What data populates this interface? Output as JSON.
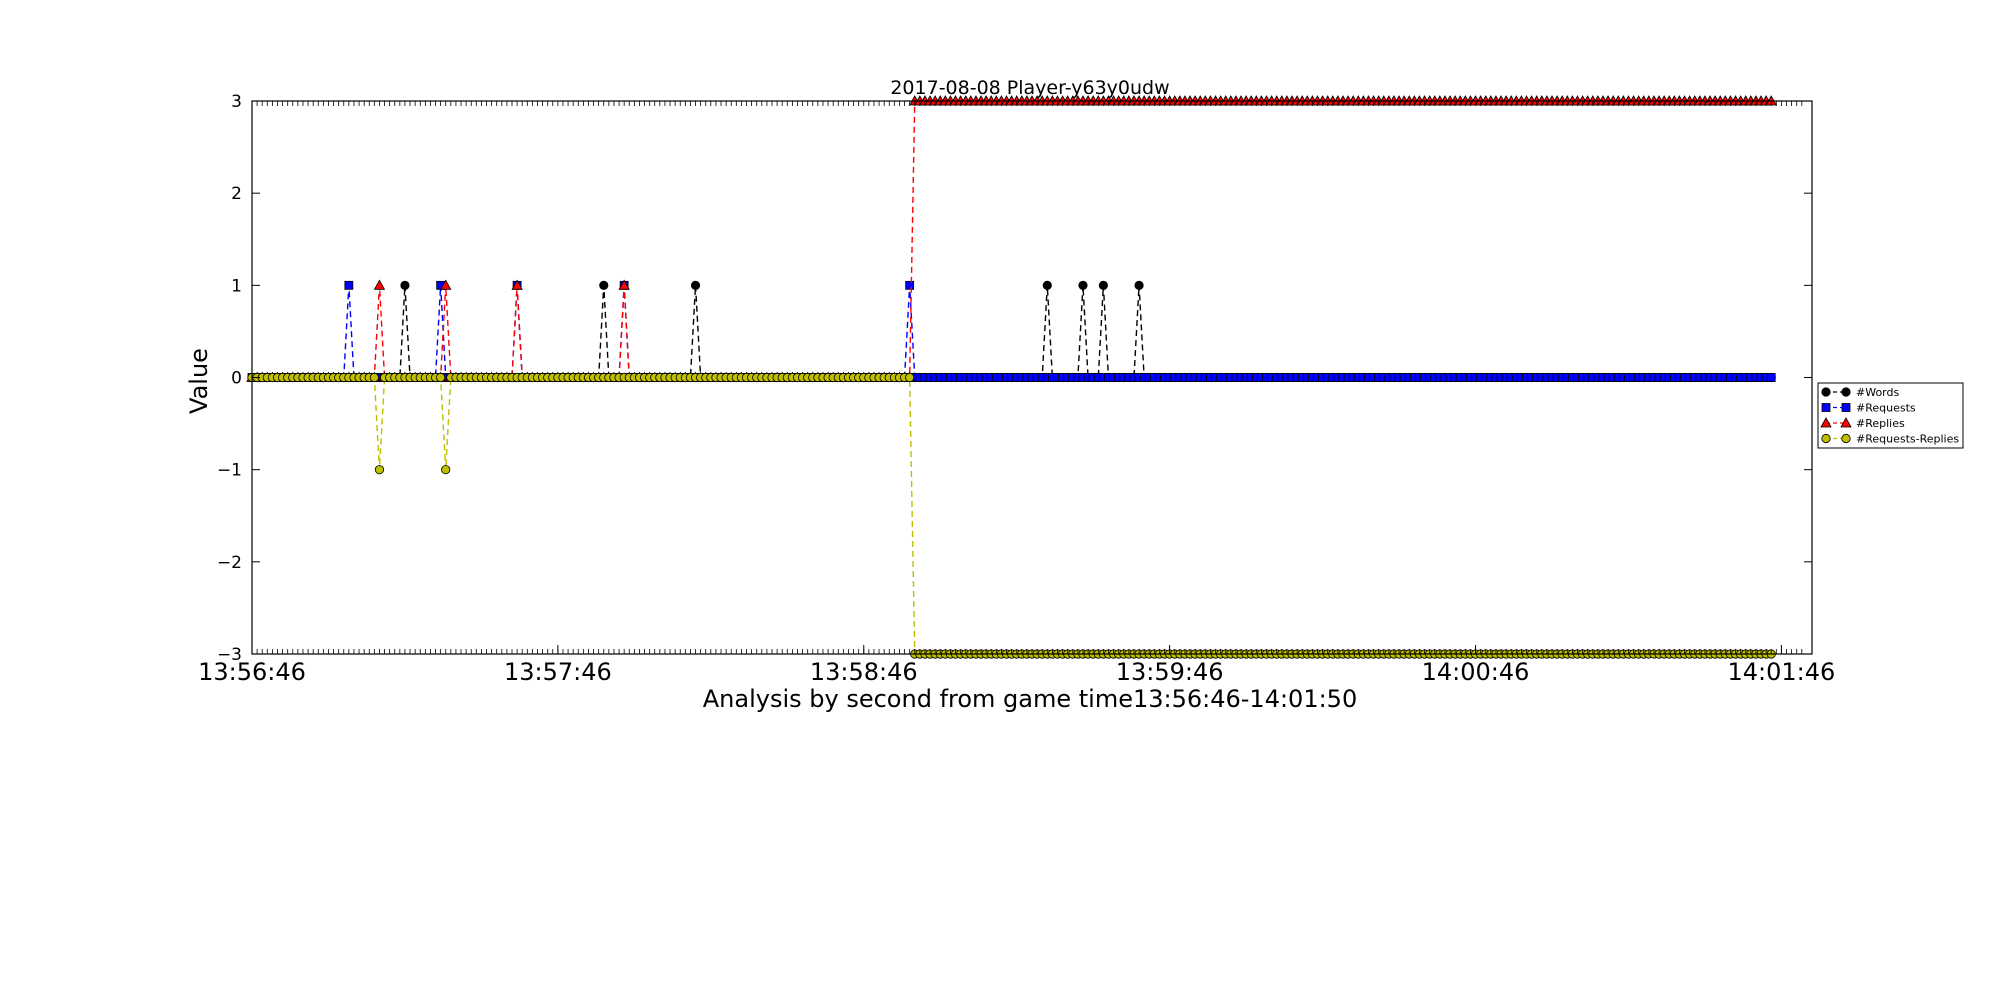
{
  "chart_data": {
    "type": "line",
    "title": "2017-08-08 Player-y63y0udw",
    "xlabel": "Analysis by second from game time13:56:46-14:01:50",
    "ylabel": "Value",
    "x_start": "13:56:46",
    "x_end": "14:01:50",
    "x_data_end": "14:01:52",
    "x_series_end": "14:01:44",
    "xlim": [
      "13:56:46",
      "14:01:50"
    ],
    "ylim": [
      -3,
      3
    ],
    "x_tick_labels": [
      "13:56:46",
      "13:57:46",
      "13:58:46",
      "13:59:46",
      "14:00:46",
      "14:01:46"
    ],
    "y_ticks": [
      -3,
      -2,
      -1,
      0,
      1,
      2,
      3
    ],
    "legend_position": "right, outside plot",
    "grid": false,
    "series": [
      {
        "name": "#Words",
        "color": "#000000",
        "marker": "circle",
        "baseline": 0,
        "events": [
          {
            "time": "13:57:16",
            "value": 1
          },
          {
            "time": "13:57:55",
            "value": 1
          },
          {
            "time": "13:58:13",
            "value": 1
          },
          {
            "time": "13:59:22",
            "value": 1
          },
          {
            "time": "13:59:29",
            "value": 1
          },
          {
            "time": "13:59:33",
            "value": 1
          },
          {
            "time": "13:59:40",
            "value": 1
          }
        ]
      },
      {
        "name": "#Requests",
        "color": "#0000ff",
        "marker": "square",
        "baseline": 0,
        "events": [
          {
            "time": "13:57:05",
            "value": 1
          },
          {
            "time": "13:57:23",
            "value": 1
          },
          {
            "time": "13:57:38",
            "value": 1
          },
          {
            "time": "13:57:59",
            "value": 1
          },
          {
            "time": "13:58:55",
            "value": 1
          }
        ]
      },
      {
        "name": "#Replies",
        "color": "#ff0000",
        "marker": "triangle",
        "baseline": 0,
        "events": [
          {
            "time": "13:57:11",
            "value": 1
          },
          {
            "time": "13:57:24",
            "value": 1
          },
          {
            "time": "13:57:38",
            "value": 1
          },
          {
            "time": "13:57:59",
            "value": 1
          }
        ],
        "step": {
          "from": "13:58:56",
          "value": 3
        }
      },
      {
        "name": "#Requests-Replies",
        "color": "#bfbf00",
        "marker": "circle",
        "baseline": 0,
        "events": [
          {
            "time": "13:57:11",
            "value": -1
          },
          {
            "time": "13:57:24",
            "value": -1
          }
        ],
        "step": {
          "from": "13:58:56",
          "value": -3
        }
      }
    ]
  }
}
